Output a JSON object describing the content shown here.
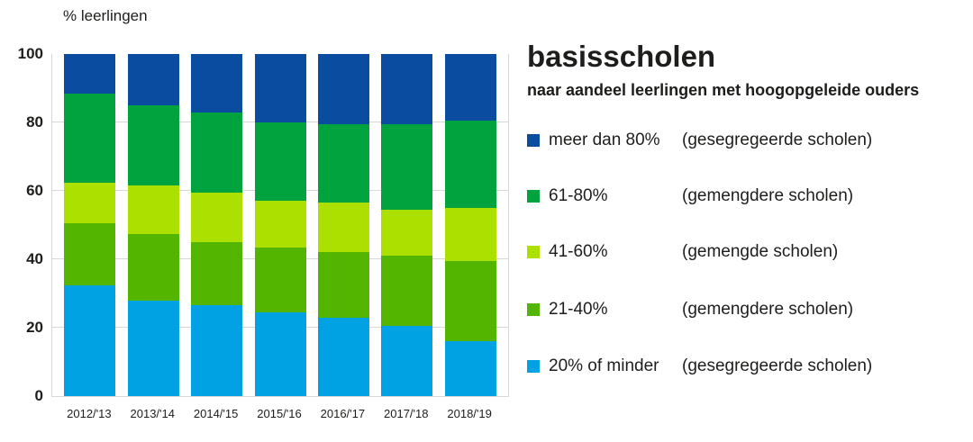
{
  "chart_data": {
    "type": "bar",
    "stacked": true,
    "title": "basisscholen",
    "subtitle": "naar aandeel leerlingen met hoogopgeleide ouders",
    "ylabel": "% leerlingen",
    "ylim": [
      0,
      100
    ],
    "yticks": [
      0,
      20,
      40,
      60,
      80,
      100
    ],
    "grid": true,
    "legend_position": "right",
    "categories": [
      "2012/'13",
      "2013/'14",
      "2014/'15",
      "2015/'16",
      "2016/'17",
      "2017/'18",
      "2018/'19"
    ],
    "series": [
      {
        "name": "20% of minder",
        "note": "(gesegregeerde scholen)",
        "color": "#00a2e3",
        "values": [
          32.5,
          28,
          26.5,
          24.5,
          23,
          20.5,
          16
        ]
      },
      {
        "name": "21-40%",
        "note": "(gemengdere scholen)",
        "color": "#53b500",
        "values": [
          18,
          19.5,
          18.5,
          19,
          19,
          20.5,
          23.5
        ]
      },
      {
        "name": "41-60%",
        "note": "(gemengde scholen)",
        "color": "#abe000",
        "values": [
          12,
          14,
          14.5,
          13.5,
          14.5,
          13.5,
          15.5
        ]
      },
      {
        "name": "61-80%",
        "note": "(gemengdere scholen)",
        "color": "#00a33e",
        "values": [
          26,
          23.5,
          23.5,
          23,
          23,
          25,
          25.5
        ]
      },
      {
        "name": "meer dan 80%",
        "note": "(gesegregeerde scholen)",
        "color": "#0a4da0",
        "values": [
          11.5,
          15,
          17,
          20,
          20.5,
          20.5,
          19.5
        ]
      }
    ],
    "legend_order_top_to_bottom": [
      "meer dan 80%",
      "61-80%",
      "41-60%",
      "21-40%",
      "20% of minder"
    ],
    "colors": {
      "grid": "#d8d8d8",
      "text": "#1d1d1b"
    }
  }
}
